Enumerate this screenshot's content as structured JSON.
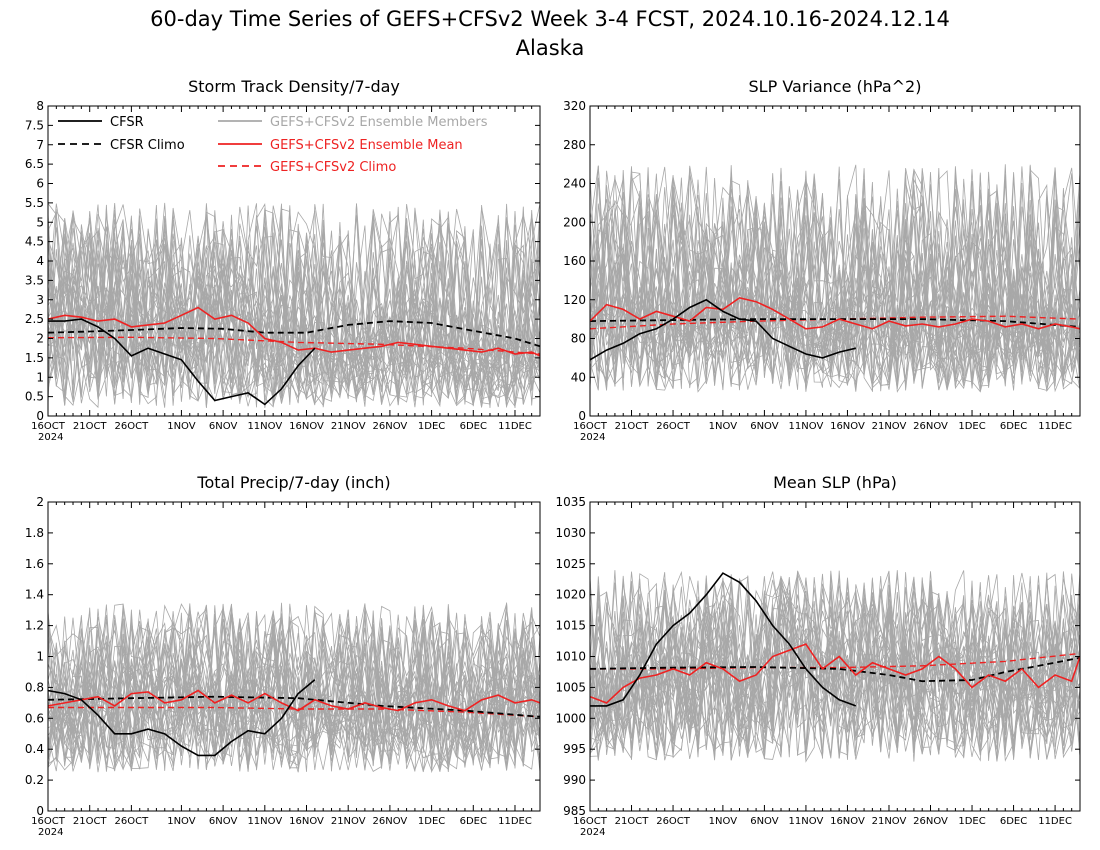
{
  "figure": {
    "title": "60-day Time Series of GEFS+CFSv2 Week 3-4 FCST, 2024.10.16-2024.12.14",
    "subtitle": "Alaska",
    "colors": {
      "cfsr": "#000000",
      "members": "#a8a8a8",
      "mean": "#ee2222",
      "climo": "#ee2222"
    },
    "member_count_drawn": 40
  },
  "legend": {
    "items": [
      {
        "label": "CFSR",
        "style": "solid",
        "color": "#000000"
      },
      {
        "label": "CFSR Climo",
        "style": "dashed",
        "color": "#000000"
      },
      {
        "label": "GEFS+CFSv2 Ensemble Members",
        "style": "solid",
        "color": "#a8a8a8"
      },
      {
        "label": "GEFS+CFSv2 Ensemble Mean",
        "style": "solid",
        "color": "#ee2222"
      },
      {
        "label": "GEFS+CFSv2 Climo",
        "style": "dashed",
        "color": "#ee2222"
      }
    ]
  },
  "x_axis": {
    "tick_labels": [
      "16OCT",
      "21OCT",
      "26OCT",
      "1NOV",
      "6NOV",
      "11NOV",
      "16NOV",
      "21NOV",
      "26NOV",
      "1DEC",
      "6DEC",
      "11DEC"
    ],
    "tick_days": [
      0,
      5,
      10,
      16,
      21,
      26,
      31,
      36,
      41,
      46,
      51,
      56
    ],
    "year_label": "2024",
    "n_days": 60
  },
  "chart_data": [
    {
      "type": "line",
      "title": "Storm Track Density/7-day",
      "ylim": [
        0,
        8
      ],
      "yticks": [
        0,
        0.5,
        1,
        1.5,
        2,
        2.5,
        3,
        3.5,
        4,
        4.5,
        5,
        5.5,
        6,
        6.5,
        7,
        7.5,
        8
      ],
      "ytick_labels": [
        "0",
        "0.5",
        "1",
        "1.5",
        "2",
        "2.5",
        "3",
        "3.5",
        "4",
        "4.5",
        "5",
        "5.5",
        "6",
        "6.5",
        "7",
        "7.5",
        "8"
      ],
      "member_spread": {
        "low": 0.2,
        "high": 5.5
      },
      "series": [
        {
          "name": "CFSR",
          "x": [
            0,
            2,
            4,
            6,
            8,
            10,
            12,
            14,
            16,
            18,
            20,
            22,
            24,
            26,
            28,
            30,
            32
          ],
          "values": [
            2.45,
            2.45,
            2.5,
            2.3,
            2.0,
            1.55,
            1.75,
            1.6,
            1.45,
            0.9,
            0.4,
            0.5,
            0.6,
            0.3,
            0.7,
            1.3,
            1.75
          ]
        },
        {
          "name": "CFSR Climo",
          "x": [
            0,
            5,
            10,
            16,
            21,
            26,
            31,
            36,
            41,
            46,
            51,
            56,
            59
          ],
          "values": [
            2.15,
            2.18,
            2.22,
            2.27,
            2.25,
            2.15,
            2.15,
            2.35,
            2.45,
            2.4,
            2.2,
            2.0,
            1.8
          ]
        },
        {
          "name": "GEFS+CFSv2 Ensemble Mean",
          "x": [
            0,
            2,
            4,
            6,
            8,
            10,
            12,
            14,
            16,
            18,
            20,
            22,
            24,
            26,
            28,
            30,
            32,
            34,
            36,
            38,
            40,
            42,
            44,
            46,
            48,
            50,
            52,
            54,
            56,
            58,
            59
          ],
          "values": [
            2.5,
            2.6,
            2.55,
            2.45,
            2.5,
            2.3,
            2.35,
            2.4,
            2.6,
            2.8,
            2.5,
            2.6,
            2.4,
            2.0,
            1.9,
            1.7,
            1.75,
            1.65,
            1.7,
            1.75,
            1.8,
            1.9,
            1.85,
            1.8,
            1.75,
            1.7,
            1.65,
            1.75,
            1.6,
            1.65,
            1.55
          ]
        },
        {
          "name": "GEFS+CFSv2 Climo",
          "x": [
            0,
            10,
            20,
            30,
            40,
            50,
            59
          ],
          "values": [
            2.02,
            2.03,
            2.0,
            1.9,
            1.85,
            1.75,
            1.6
          ]
        }
      ]
    },
    {
      "type": "line",
      "title": "SLP Variance (hPa^2)",
      "ylim": [
        0,
        320
      ],
      "yticks": [
        0,
        40,
        80,
        120,
        160,
        200,
        240,
        280,
        320
      ],
      "ytick_labels": [
        "0",
        "40",
        "80",
        "120",
        "160",
        "200",
        "240",
        "280",
        "320"
      ],
      "member_spread": {
        "low": 25,
        "high": 260
      },
      "series": [
        {
          "name": "CFSR",
          "x": [
            0,
            2,
            4,
            6,
            8,
            10,
            12,
            14,
            16,
            18,
            20,
            22,
            24,
            26,
            28,
            30,
            32
          ],
          "values": [
            58,
            68,
            75,
            85,
            90,
            100,
            112,
            120,
            108,
            100,
            98,
            80,
            72,
            64,
            60,
            66,
            70
          ]
        },
        {
          "name": "CFSR Climo",
          "x": [
            0,
            10,
            20,
            30,
            40,
            50,
            59
          ],
          "values": [
            98,
            99,
            100,
            100,
            100,
            98,
            92
          ]
        },
        {
          "name": "GEFS+CFSv2 Ensemble Mean",
          "x": [
            0,
            2,
            4,
            6,
            8,
            10,
            12,
            14,
            16,
            18,
            20,
            22,
            24,
            26,
            28,
            30,
            32,
            34,
            36,
            38,
            40,
            42,
            44,
            46,
            48,
            50,
            52,
            54,
            56,
            58,
            59
          ],
          "values": [
            98,
            115,
            110,
            100,
            108,
            103,
            98,
            112,
            110,
            122,
            118,
            110,
            100,
            90,
            92,
            100,
            95,
            90,
            98,
            93,
            95,
            92,
            95,
            100,
            98,
            92,
            95,
            90,
            95,
            92,
            90
          ]
        },
        {
          "name": "GEFS+CFSv2 Climo",
          "x": [
            0,
            10,
            20,
            30,
            40,
            50,
            59
          ],
          "values": [
            90,
            95,
            98,
            100,
            102,
            103,
            100
          ]
        }
      ]
    },
    {
      "type": "line",
      "title": "Total Precip/7-day (inch)",
      "ylim": [
        0,
        2
      ],
      "yticks": [
        0,
        0.2,
        0.4,
        0.6,
        0.8,
        1,
        1.2,
        1.4,
        1.6,
        1.8,
        2
      ],
      "ytick_labels": [
        "0",
        "0.2",
        "0.4",
        "0.6",
        "0.8",
        "1",
        "1.2",
        "1.4",
        "1.6",
        "1.8",
        "2"
      ],
      "member_spread": {
        "low": 0.25,
        "high": 1.35
      },
      "series": [
        {
          "name": "CFSR",
          "x": [
            0,
            2,
            4,
            6,
            8,
            10,
            12,
            14,
            16,
            18,
            20,
            22,
            24,
            26,
            28,
            30,
            32
          ],
          "values": [
            0.78,
            0.76,
            0.72,
            0.62,
            0.5,
            0.5,
            0.53,
            0.5,
            0.42,
            0.36,
            0.36,
            0.45,
            0.52,
            0.5,
            0.6,
            0.76,
            0.85
          ]
        },
        {
          "name": "CFSR Climo",
          "x": [
            0,
            10,
            20,
            30,
            40,
            50,
            59
          ],
          "values": [
            0.72,
            0.73,
            0.74,
            0.73,
            0.68,
            0.65,
            0.61
          ]
        },
        {
          "name": "GEFS+CFSv2 Ensemble Mean",
          "x": [
            0,
            2,
            4,
            6,
            8,
            10,
            12,
            14,
            16,
            18,
            20,
            22,
            24,
            26,
            28,
            30,
            32,
            34,
            36,
            38,
            40,
            42,
            44,
            46,
            48,
            50,
            52,
            54,
            56,
            58,
            59
          ],
          "values": [
            0.68,
            0.7,
            0.72,
            0.74,
            0.68,
            0.76,
            0.77,
            0.7,
            0.72,
            0.78,
            0.7,
            0.75,
            0.7,
            0.76,
            0.7,
            0.65,
            0.72,
            0.68,
            0.66,
            0.7,
            0.67,
            0.65,
            0.7,
            0.72,
            0.68,
            0.65,
            0.72,
            0.75,
            0.7,
            0.72,
            0.7
          ]
        },
        {
          "name": "GEFS+CFSv2 Climo",
          "x": [
            0,
            10,
            20,
            30,
            40,
            50,
            59
          ],
          "values": [
            0.67,
            0.67,
            0.67,
            0.66,
            0.66,
            0.64,
            0.61
          ]
        }
      ]
    },
    {
      "type": "line",
      "title": "Mean SLP (hPa)",
      "ylim": [
        985,
        1035
      ],
      "yticks": [
        985,
        990,
        995,
        1000,
        1005,
        1010,
        1015,
        1020,
        1025,
        1030,
        1035
      ],
      "ytick_labels": [
        "985",
        "990",
        "995",
        "1000",
        "1005",
        "1010",
        "1015",
        "1020",
        "1025",
        "1030",
        "1035"
      ],
      "member_spread": {
        "low": 993,
        "high": 1024
      },
      "series": [
        {
          "name": "CFSR",
          "x": [
            0,
            2,
            4,
            6,
            8,
            10,
            12,
            14,
            16,
            18,
            20,
            22,
            24,
            26,
            28,
            30,
            32
          ],
          "values": [
            1002,
            1002,
            1003,
            1007,
            1012,
            1015,
            1017,
            1020,
            1023.5,
            1022,
            1019,
            1015,
            1012,
            1008,
            1005,
            1003,
            1002
          ]
        },
        {
          "name": "CFSR Climo",
          "x": [
            0,
            10,
            20,
            30,
            36,
            40,
            46,
            50,
            56,
            59
          ],
          "values": [
            1008,
            1008.2,
            1008.3,
            1008,
            1007,
            1006,
            1006.2,
            1007.5,
            1009,
            1009.8
          ]
        },
        {
          "name": "GEFS+CFSv2 Ensemble Mean",
          "x": [
            0,
            2,
            4,
            6,
            8,
            10,
            12,
            14,
            16,
            18,
            20,
            22,
            24,
            26,
            28,
            30,
            32,
            34,
            36,
            38,
            40,
            42,
            44,
            46,
            48,
            50,
            52,
            54,
            56,
            58,
            59
          ],
          "values": [
            1003.5,
            1002.5,
            1005,
            1006.5,
            1007,
            1008,
            1007,
            1009,
            1008,
            1006,
            1007,
            1010,
            1011,
            1012,
            1008,
            1010,
            1007,
            1009,
            1008,
            1007,
            1008,
            1010,
            1008,
            1005,
            1007,
            1006,
            1008,
            1005,
            1007,
            1006,
            1010
          ]
        },
        {
          "name": "GEFS+CFSv2 Climo",
          "x": [
            0,
            10,
            20,
            30,
            40,
            50,
            59
          ],
          "values": [
            1008,
            1008,
            1008.2,
            1008.2,
            1008.5,
            1009.2,
            1010.5
          ]
        }
      ]
    }
  ]
}
